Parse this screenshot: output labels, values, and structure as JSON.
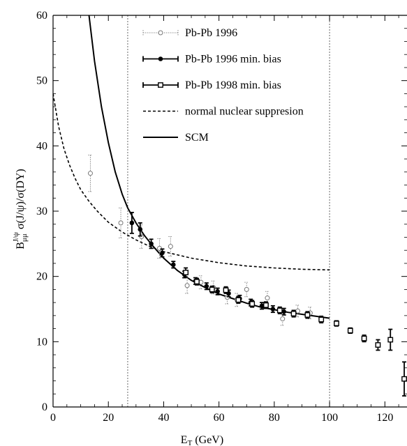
{
  "chart_data": {
    "type": "scatter",
    "xlabel": "E_T (GeV)",
    "ylabel": "B_μμ^J/ψ σ(J/ψ)/σ(DY)",
    "xlim": [
      0,
      128
    ],
    "ylim": [
      0,
      60
    ],
    "x_ticks": [
      0,
      20,
      40,
      60,
      80,
      100,
      120
    ],
    "y_ticks": [
      0,
      10,
      20,
      30,
      40,
      50,
      60
    ],
    "vertical_lines": [
      27,
      100
    ],
    "legend_position": "top-center",
    "series": [
      {
        "name": "Pb-Pb 1996",
        "style": "open-circle-dotted",
        "color": "#888888",
        "points": [
          {
            "x": 13.5,
            "y": 35.8,
            "err": 2.8
          },
          {
            "x": 24.5,
            "y": 28.2,
            "err": 2.3
          },
          {
            "x": 32.0,
            "y": 26.1,
            "err": 1.8
          },
          {
            "x": 38.5,
            "y": 24.3,
            "err": 1.5
          },
          {
            "x": 42.5,
            "y": 24.6,
            "err": 1.5
          },
          {
            "x": 48.5,
            "y": 18.6,
            "err": 1.2
          },
          {
            "x": 53.5,
            "y": 19.1,
            "err": 1.0
          },
          {
            "x": 58.0,
            "y": 18.3,
            "err": 1.0
          },
          {
            "x": 63.0,
            "y": 16.8,
            "err": 1.0
          },
          {
            "x": 66.5,
            "y": 16.4,
            "err": 1.0
          },
          {
            "x": 70.0,
            "y": 18.0,
            "err": 1.1
          },
          {
            "x": 77.5,
            "y": 16.7,
            "err": 1.0
          },
          {
            "x": 83.0,
            "y": 13.5,
            "err": 1.0
          },
          {
            "x": 88.5,
            "y": 14.7,
            "err": 0.9
          },
          {
            "x": 93.0,
            "y": 14.4,
            "err": 0.9
          }
        ]
      },
      {
        "name": "Pb-Pb 1996 min. bias",
        "style": "filled-circle",
        "color": "#000000",
        "points": [
          {
            "x": 28.5,
            "y": 28.2,
            "err": 1.6
          },
          {
            "x": 31.5,
            "y": 27.2,
            "err": 1.0
          },
          {
            "x": 35.5,
            "y": 25.0,
            "err": 0.7
          },
          {
            "x": 39.5,
            "y": 23.6,
            "err": 0.6
          },
          {
            "x": 43.5,
            "y": 21.8,
            "err": 0.5
          },
          {
            "x": 47.5,
            "y": 20.3,
            "err": 0.5
          },
          {
            "x": 51.5,
            "y": 19.3,
            "err": 0.5
          },
          {
            "x": 55.5,
            "y": 18.5,
            "err": 0.5
          },
          {
            "x": 59.5,
            "y": 17.7,
            "err": 0.5
          },
          {
            "x": 63.5,
            "y": 17.4,
            "err": 0.5
          },
          {
            "x": 67.5,
            "y": 16.6,
            "err": 0.5
          },
          {
            "x": 71.5,
            "y": 16.0,
            "err": 0.5
          },
          {
            "x": 75.5,
            "y": 15.5,
            "err": 0.5
          },
          {
            "x": 79.5,
            "y": 15.0,
            "err": 0.5
          },
          {
            "x": 83.5,
            "y": 14.6,
            "err": 0.5
          }
        ]
      },
      {
        "name": "Pb-Pb 1998 min. bias",
        "style": "open-square",
        "color": "#000000",
        "points": [
          {
            "x": 48.0,
            "y": 20.6,
            "err": 0.7
          },
          {
            "x": 52.0,
            "y": 19.2,
            "err": 0.5
          },
          {
            "x": 57.5,
            "y": 18.0,
            "err": 0.5
          },
          {
            "x": 62.5,
            "y": 17.9,
            "err": 0.5
          },
          {
            "x": 67.0,
            "y": 16.4,
            "err": 0.5
          },
          {
            "x": 72.0,
            "y": 15.8,
            "err": 0.5
          },
          {
            "x": 77.0,
            "y": 15.6,
            "err": 0.5
          },
          {
            "x": 82.0,
            "y": 14.8,
            "err": 0.5
          },
          {
            "x": 87.0,
            "y": 14.3,
            "err": 0.5
          },
          {
            "x": 92.0,
            "y": 14.1,
            "err": 0.5
          },
          {
            "x": 97.0,
            "y": 13.4,
            "err": 0.5
          },
          {
            "x": 102.5,
            "y": 12.8,
            "err": 0.4
          },
          {
            "x": 107.5,
            "y": 11.7,
            "err": 0.4
          },
          {
            "x": 112.5,
            "y": 10.5,
            "err": 0.5
          },
          {
            "x": 117.5,
            "y": 9.5,
            "err": 0.8
          },
          {
            "x": 122.0,
            "y": 10.3,
            "err": 1.6
          },
          {
            "x": 127.0,
            "y": 4.3,
            "err": 2.6
          }
        ]
      }
    ],
    "curves": [
      {
        "name": "normal nuclear suppresion",
        "style": "dashed",
        "points": [
          [
            0,
            48
          ],
          [
            2,
            43
          ],
          [
            4,
            39.5
          ],
          [
            6,
            37
          ],
          [
            8,
            35
          ],
          [
            10,
            33.3
          ],
          [
            13,
            31.5
          ],
          [
            16,
            30
          ],
          [
            20,
            28.3
          ],
          [
            25,
            26.8
          ],
          [
            30,
            25.6
          ],
          [
            35,
            24.6
          ],
          [
            40,
            23.8
          ],
          [
            50,
            22.8
          ],
          [
            60,
            22.1
          ],
          [
            70,
            21.6
          ],
          [
            80,
            21.3
          ],
          [
            90,
            21.1
          ],
          [
            100,
            21.0
          ]
        ]
      },
      {
        "name": "SCM",
        "style": "solid",
        "points": [
          [
            13,
            60
          ],
          [
            15,
            53
          ],
          [
            17.5,
            46
          ],
          [
            20,
            40.5
          ],
          [
            22.5,
            36
          ],
          [
            25,
            32.6
          ],
          [
            27,
            30.5
          ],
          [
            30,
            28.2
          ],
          [
            33,
            26.3
          ],
          [
            36,
            24.7
          ],
          [
            40,
            22.8
          ],
          [
            45,
            20.9
          ],
          [
            50,
            19.4
          ],
          [
            55,
            18.3
          ],
          [
            60,
            17.3
          ],
          [
            65,
            16.6
          ],
          [
            70,
            15.9
          ],
          [
            75,
            15.3
          ],
          [
            80,
            14.9
          ],
          [
            85,
            14.5
          ],
          [
            90,
            14.2
          ],
          [
            95,
            13.9
          ],
          [
            100,
            13.6
          ]
        ]
      }
    ]
  },
  "legend": {
    "items": [
      {
        "label": "Pb-Pb 1996",
        "style": "open-circle-dotted"
      },
      {
        "label": "Pb-Pb 1996 min. bias",
        "style": "filled-circle"
      },
      {
        "label": "Pb-Pb 1998 min. bias",
        "style": "open-square"
      },
      {
        "label": "normal nuclear suppresion",
        "style": "dashed"
      },
      {
        "label": "SCM",
        "style": "solid"
      }
    ]
  }
}
